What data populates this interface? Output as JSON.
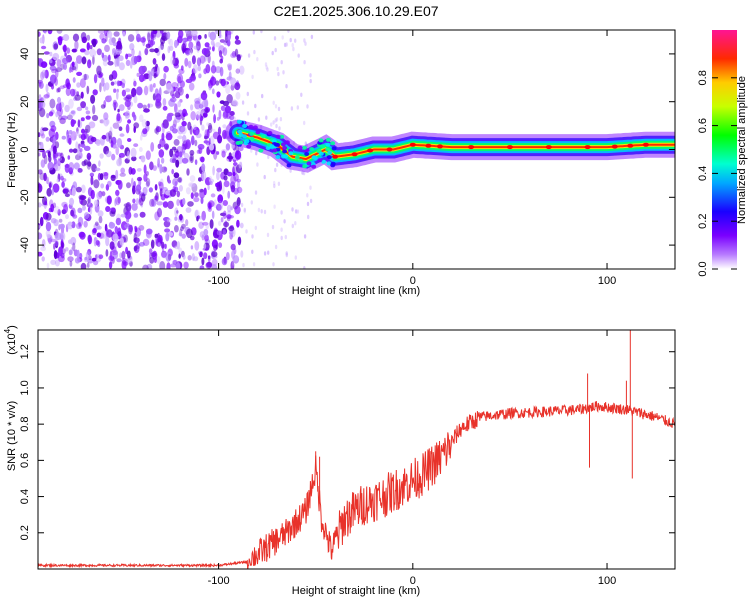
{
  "title": "C2E1.2025.306.10.29.E07",
  "chart_data": [
    {
      "type": "heatmap",
      "name": "spectrogram",
      "xlabel": "Height of straight line (km)",
      "ylabel": "Frequency (Hz)",
      "xlim": [
        -193,
        135
      ],
      "ylim": [
        -50,
        50
      ],
      "xticks": [
        -100,
        0,
        100
      ],
      "xtick_labels": [
        "-100",
        "0",
        "100"
      ],
      "yticks": [
        -40,
        -20,
        0,
        20,
        40
      ],
      "ytick_labels": [
        "-40",
        "-20",
        "0",
        "20",
        "40"
      ],
      "colorbar": {
        "label": "Normalized spectral amplitude",
        "range": [
          0,
          1
        ],
        "ticks": [
          0.0,
          0.2,
          0.4,
          0.6,
          0.8
        ],
        "tick_labels": [
          "0.0",
          "0.2",
          "0.4",
          "0.6",
          "0.8"
        ],
        "colors": [
          "#ffffff",
          "#8a00ff",
          "#0000ff",
          "#00e5ff",
          "#00ff00",
          "#ffff00",
          "#ff0000",
          "#ff00aa"
        ]
      },
      "noise_region_x": [
        -193,
        -88
      ],
      "ridge": [
        {
          "x": -90,
          "y": 7
        },
        {
          "x": -80,
          "y": 5
        },
        {
          "x": -70,
          "y": 2
        },
        {
          "x": -62,
          "y": -3
        },
        {
          "x": -55,
          "y": -4
        },
        {
          "x": -50,
          "y": -2
        },
        {
          "x": -45,
          "y": 0
        },
        {
          "x": -40,
          "y": -3
        },
        {
          "x": -30,
          "y": -2
        },
        {
          "x": -20,
          "y": 0
        },
        {
          "x": -10,
          "y": 0
        },
        {
          "x": 0,
          "y": 2
        },
        {
          "x": 20,
          "y": 1
        },
        {
          "x": 50,
          "y": 1
        },
        {
          "x": 80,
          "y": 1
        },
        {
          "x": 100,
          "y": 1
        },
        {
          "x": 120,
          "y": 2
        },
        {
          "x": 135,
          "y": 2
        }
      ]
    },
    {
      "type": "line",
      "name": "snr",
      "xlabel": "Height of straight line (km)",
      "ylabel": "SNR (10 * v/v)",
      "scale_label": "(x10",
      "scale_exponent": "4",
      "scale_close": ")",
      "xlim": [
        -193,
        135
      ],
      "ylim": [
        0,
        1.32
      ],
      "xticks": [
        -100,
        0,
        100
      ],
      "xtick_labels": [
        "-100",
        "0",
        "100"
      ],
      "yticks": [
        0.2,
        0.4,
        0.6,
        0.8,
        1.0,
        1.2
      ],
      "ytick_labels": [
        "0.2",
        "0.4",
        "0.6",
        "0.8",
        "1.0",
        "1.2"
      ],
      "color": "#e8322a",
      "series": [
        {
          "name": "SNR",
          "points": [
            {
              "x": -193,
              "y": 0.02
            },
            {
              "x": -150,
              "y": 0.02
            },
            {
              "x": -100,
              "y": 0.02
            },
            {
              "x": -85,
              "y": 0.04
            },
            {
              "x": -75,
              "y": 0.12
            },
            {
              "x": -65,
              "y": 0.2
            },
            {
              "x": -55,
              "y": 0.32
            },
            {
              "x": -50,
              "y": 0.55
            },
            {
              "x": -47,
              "y": 0.28
            },
            {
              "x": -42,
              "y": 0.1
            },
            {
              "x": -35,
              "y": 0.28
            },
            {
              "x": -25,
              "y": 0.36
            },
            {
              "x": -15,
              "y": 0.4
            },
            {
              "x": -5,
              "y": 0.46
            },
            {
              "x": 5,
              "y": 0.52
            },
            {
              "x": 15,
              "y": 0.62
            },
            {
              "x": 25,
              "y": 0.78
            },
            {
              "x": 35,
              "y": 0.84
            },
            {
              "x": 50,
              "y": 0.86
            },
            {
              "x": 70,
              "y": 0.87
            },
            {
              "x": 85,
              "y": 0.88
            },
            {
              "x": 95,
              "y": 0.9
            },
            {
              "x": 110,
              "y": 0.88
            },
            {
              "x": 125,
              "y": 0.84
            },
            {
              "x": 135,
              "y": 0.8
            }
          ]
        }
      ],
      "spikes": [
        {
          "x": -50,
          "y": 0.65
        },
        {
          "x": -48,
          "y": 0.62
        },
        {
          "x": 90,
          "y": 1.08
        },
        {
          "x": 91,
          "y": 0.56
        },
        {
          "x": 112,
          "y": 1.35
        },
        {
          "x": 113,
          "y": 0.5
        },
        {
          "x": 110,
          "y": 1.04
        }
      ]
    }
  ]
}
